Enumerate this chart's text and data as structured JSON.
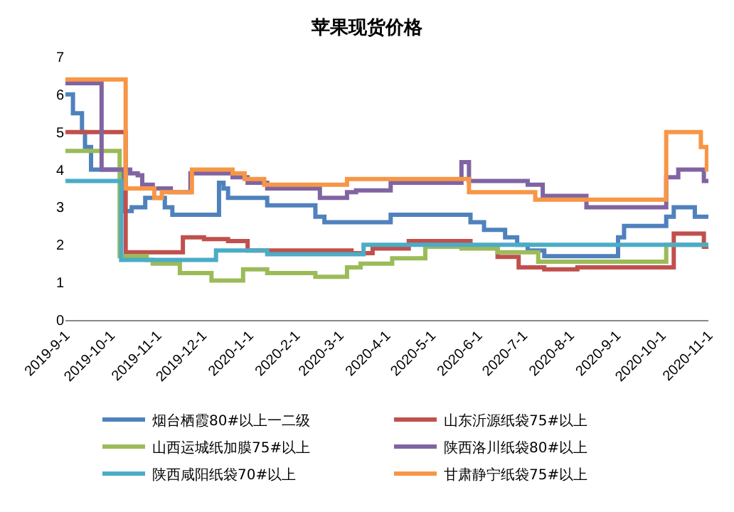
{
  "chart_data": {
    "type": "step",
    "title": "苹果现货价格",
    "xlim": [
      "2019-09-01",
      "2020-11-01"
    ],
    "xticks": [
      {
        "value": "2019-09-01",
        "label": "2019-9-1"
      },
      {
        "value": "2019-10-01",
        "label": "2019-10-1"
      },
      {
        "value": "2019-11-01",
        "label": "2019-11-1"
      },
      {
        "value": "2019-12-01",
        "label": "2019-12-1"
      },
      {
        "value": "2020-01-01",
        "label": "2020-1-1"
      },
      {
        "value": "2020-02-01",
        "label": "2020-2-1"
      },
      {
        "value": "2020-03-01",
        "label": "2020-3-1"
      },
      {
        "value": "2020-04-01",
        "label": "2020-4-1"
      },
      {
        "value": "2020-05-01",
        "label": "2020-5-1"
      },
      {
        "value": "2020-06-01",
        "label": "2020-6-1"
      },
      {
        "value": "2020-07-01",
        "label": "2020-7-1"
      },
      {
        "value": "2020-08-01",
        "label": "2020-8-1"
      },
      {
        "value": "2020-09-01",
        "label": "2020-9-1"
      },
      {
        "value": "2020-10-01",
        "label": "2020-10-1"
      },
      {
        "value": "2020-11-01",
        "label": "2020-11-1"
      }
    ],
    "ylim": [
      0,
      7
    ],
    "yticks": [
      0,
      1,
      2,
      3,
      4,
      5,
      6,
      7
    ],
    "grid": false,
    "legend": "bottom",
    "marker": "none",
    "line_style": "solid",
    "series": [
      {
        "name": "烟台栖霞80#以上一二级",
        "color": "#4f81bd",
        "x": [
          "2019-09-01",
          "2019-09-06",
          "2019-09-12",
          "2019-09-14",
          "2019-09-18",
          "2019-10-09",
          "2019-10-15",
          "2019-10-24",
          "2019-11-06",
          "2019-11-11",
          "2019-12-12",
          "2019-12-15",
          "2019-12-18",
          "2020-01-13",
          "2020-02-14",
          "2020-02-20",
          "2020-04-04",
          "2020-05-27",
          "2020-06-05",
          "2020-06-19",
          "2020-06-27",
          "2020-07-04",
          "2020-07-15",
          "2020-09-02",
          "2020-09-06",
          "2020-10-04",
          "2020-10-09",
          "2020-10-23",
          "2020-11-01"
        ],
        "values": [
          6.0,
          5.5,
          5.0,
          4.6,
          4.0,
          2.9,
          3.0,
          3.25,
          3.0,
          2.8,
          3.65,
          3.5,
          3.25,
          3.05,
          2.75,
          2.6,
          2.8,
          2.6,
          2.4,
          2.2,
          2.0,
          1.85,
          1.7,
          2.2,
          2.5,
          2.75,
          3.0,
          2.75,
          2.75
        ]
      },
      {
        "name": "山东沂源纸袋75#以上",
        "color": "#c0504d",
        "x": [
          "2019-09-01",
          "2019-10-11",
          "2019-11-18",
          "2019-12-02",
          "2019-12-18",
          "2019-12-31",
          "2020-03-09",
          "2020-03-23",
          "2020-04-16",
          "2020-05-27",
          "2020-06-14",
          "2020-06-28",
          "2020-07-15",
          "2020-08-06",
          "2020-10-09",
          "2020-10-29",
          "2020-11-01"
        ],
        "values": [
          5.0,
          1.8,
          2.2,
          2.15,
          2.1,
          1.85,
          1.78,
          1.9,
          2.1,
          1.95,
          1.68,
          1.4,
          1.35,
          1.4,
          2.3,
          1.95,
          1.95
        ]
      },
      {
        "name": "山西运城纸加膜75#以上",
        "color": "#9bbb59",
        "x": [
          "2019-09-01",
          "2019-10-07",
          "2019-10-25",
          "2019-10-29",
          "2019-11-16",
          "2019-12-07",
          "2019-12-28",
          "2020-01-13",
          "2020-02-14",
          "2020-03-06",
          "2020-03-15",
          "2020-04-05",
          "2020-04-27",
          "2020-05-21",
          "2020-06-14",
          "2020-07-11",
          "2020-10-04",
          "2020-11-01"
        ],
        "values": [
          4.5,
          1.7,
          1.6,
          1.5,
          1.25,
          1.05,
          1.35,
          1.25,
          1.15,
          1.4,
          1.5,
          1.64,
          1.95,
          1.9,
          1.8,
          1.55,
          2.0,
          2.0
        ]
      },
      {
        "name": "陕西洛川纸袋80#以上",
        "color": "#8064a2",
        "x": [
          "2019-09-01",
          "2019-09-25",
          "2019-10-14",
          "2019-10-19",
          "2019-10-22",
          "2019-10-29",
          "2019-11-10",
          "2019-11-23",
          "2019-12-21",
          "2019-12-31",
          "2020-01-13",
          "2020-02-17",
          "2020-03-06",
          "2020-03-12",
          "2020-04-04",
          "2020-05-21",
          "2020-05-26",
          "2020-07-04",
          "2020-07-14",
          "2020-08-12",
          "2020-10-04",
          "2020-10-12",
          "2020-10-29",
          "2020-11-01"
        ],
        "values": [
          6.3,
          4.0,
          3.9,
          3.85,
          3.6,
          3.5,
          3.4,
          3.9,
          3.8,
          3.65,
          3.5,
          3.25,
          3.4,
          3.45,
          3.65,
          4.2,
          3.7,
          3.6,
          3.3,
          3.0,
          3.8,
          4.0,
          3.7,
          3.7
        ]
      },
      {
        "name": "陕西咸阳纸袋70#以上",
        "color": "#4bacc6",
        "x": [
          "2019-09-01",
          "2019-10-08",
          "2019-12-10",
          "2020-01-13",
          "2020-03-17",
          "2020-11-01"
        ],
        "values": [
          3.7,
          1.6,
          1.85,
          1.75,
          2.0,
          2.0
        ]
      },
      {
        "name": "甘肃静宁纸袋75#以上",
        "color": "#f79646",
        "x": [
          "2019-09-01",
          "2019-10-11",
          "2019-10-30",
          "2019-11-04",
          "2019-11-24",
          "2019-12-21",
          "2019-12-29",
          "2020-01-11",
          "2020-03-06",
          "2020-05-26",
          "2020-07-09",
          "2020-10-04",
          "2020-10-27",
          "2020-10-31",
          "2020-11-01"
        ],
        "values": [
          6.4,
          3.5,
          3.25,
          3.4,
          4.0,
          3.9,
          3.75,
          3.6,
          3.75,
          3.4,
          3.2,
          5.0,
          4.6,
          4.0,
          4.0
        ]
      }
    ]
  }
}
